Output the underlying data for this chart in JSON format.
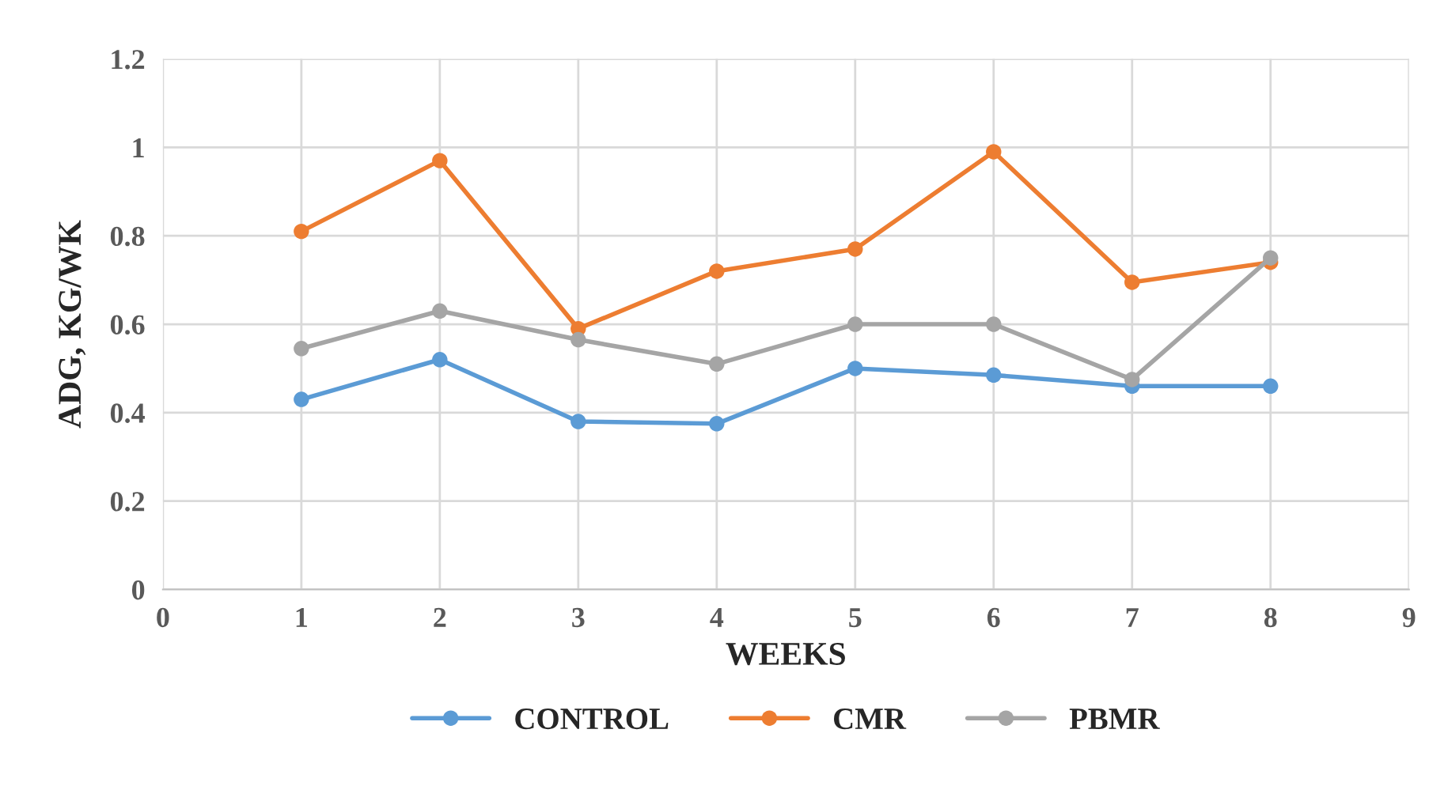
{
  "chart_data": {
    "type": "line",
    "xlabel": "WEEKS",
    "ylabel": "ADG, KG/WK",
    "x": [
      1,
      2,
      3,
      4,
      5,
      6,
      7,
      8
    ],
    "series": [
      {
        "name": "CONTROL",
        "color": "#5b9bd5",
        "values": [
          0.43,
          0.52,
          0.38,
          0.375,
          0.5,
          0.485,
          0.46,
          0.46
        ]
      },
      {
        "name": "CMR",
        "color": "#ed7d31",
        "values": [
          0.81,
          0.97,
          0.59,
          0.72,
          0.77,
          0.99,
          0.695,
          0.74
        ]
      },
      {
        "name": "PBMR",
        "color": "#a5a5a5",
        "values": [
          0.545,
          0.63,
          0.565,
          0.51,
          0.6,
          0.6,
          0.475,
          0.75
        ]
      }
    ],
    "xlim": [
      0,
      9
    ],
    "xticks": [
      0,
      1,
      2,
      3,
      4,
      5,
      6,
      7,
      8,
      9
    ],
    "ylim": [
      0,
      1.2
    ],
    "yticks": [
      0,
      0.2,
      0.4,
      0.6,
      0.8,
      1,
      1.2
    ],
    "grid": true,
    "legend": "bottom",
    "marker": "circle",
    "line_style": "solid"
  }
}
